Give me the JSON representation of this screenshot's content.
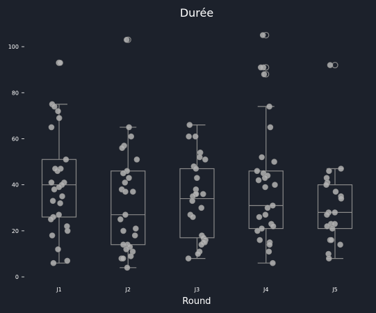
{
  "chart_data": {
    "type": "box",
    "title": "Durée",
    "xlabel": "Round",
    "ylabel": "",
    "ylim": [
      -3,
      110
    ],
    "yticks": [
      0,
      20,
      40,
      60,
      80,
      100
    ],
    "categories": [
      "J1",
      "J2",
      "J3",
      "J4",
      "J5"
    ],
    "boxes": [
      {
        "category": "J1",
        "q1": 26,
        "median": 40,
        "q3": 51,
        "whisker_low": 6,
        "whisker_high": 75,
        "fliers": [
          93
        ]
      },
      {
        "category": "J2",
        "q1": 14,
        "median": 27,
        "q3": 46,
        "whisker_low": 4,
        "whisker_high": 65,
        "fliers": [
          103
        ]
      },
      {
        "category": "J3",
        "q1": 17,
        "median": 34,
        "q3": 47,
        "whisker_low": 8,
        "whisker_high": 66,
        "fliers": []
      },
      {
        "category": "J4",
        "q1": 21,
        "median": 31,
        "q3": 46,
        "whisker_low": 6,
        "whisker_high": 74,
        "fliers": [
          105,
          91,
          88
        ]
      },
      {
        "category": "J5",
        "q1": 21,
        "median": 28,
        "q3": 40,
        "whisker_low": 8,
        "whisker_high": 47,
        "fliers": [
          92
        ]
      }
    ],
    "points": [
      {
        "category": "J1",
        "values": [
          93,
          93,
          75,
          74,
          72,
          69,
          65,
          51,
          47,
          46,
          47,
          41,
          40,
          41,
          39,
          38,
          35,
          33,
          32,
          27,
          26,
          25,
          22,
          20,
          18,
          12,
          7,
          6
        ]
      },
      {
        "category": "J2",
        "values": [
          103,
          65,
          61,
          57,
          56,
          51,
          46,
          45,
          43,
          41,
          38,
          37,
          37,
          27,
          25,
          21,
          20,
          18,
          14,
          14,
          13,
          12,
          11,
          9,
          8,
          8,
          4
        ]
      },
      {
        "category": "J3",
        "values": [
          66,
          61,
          61,
          54,
          52,
          51,
          48,
          47,
          43,
          38,
          36,
          36,
          36,
          35,
          33,
          30,
          27,
          26,
          18,
          17,
          16,
          15,
          15,
          14,
          11,
          10,
          8
        ]
      },
      {
        "category": "J4",
        "values": [
          105,
          91,
          91,
          88,
          74,
          65,
          52,
          50,
          46,
          45,
          44,
          43,
          42,
          40,
          39,
          31,
          30,
          27,
          26,
          23,
          22,
          21,
          20,
          16,
          15,
          14,
          11,
          6
        ]
      },
      {
        "category": "J5",
        "values": [
          92,
          47,
          46,
          43,
          41,
          40,
          37,
          35,
          34,
          28,
          28,
          27,
          23,
          23,
          22,
          21,
          16,
          16,
          14,
          10,
          8
        ]
      }
    ],
    "colors": {
      "background": "#1c212b",
      "box": "#8a8a8a",
      "point": "#b3b3b3",
      "text": "#ffffff"
    },
    "grid": false,
    "legend": "none"
  }
}
